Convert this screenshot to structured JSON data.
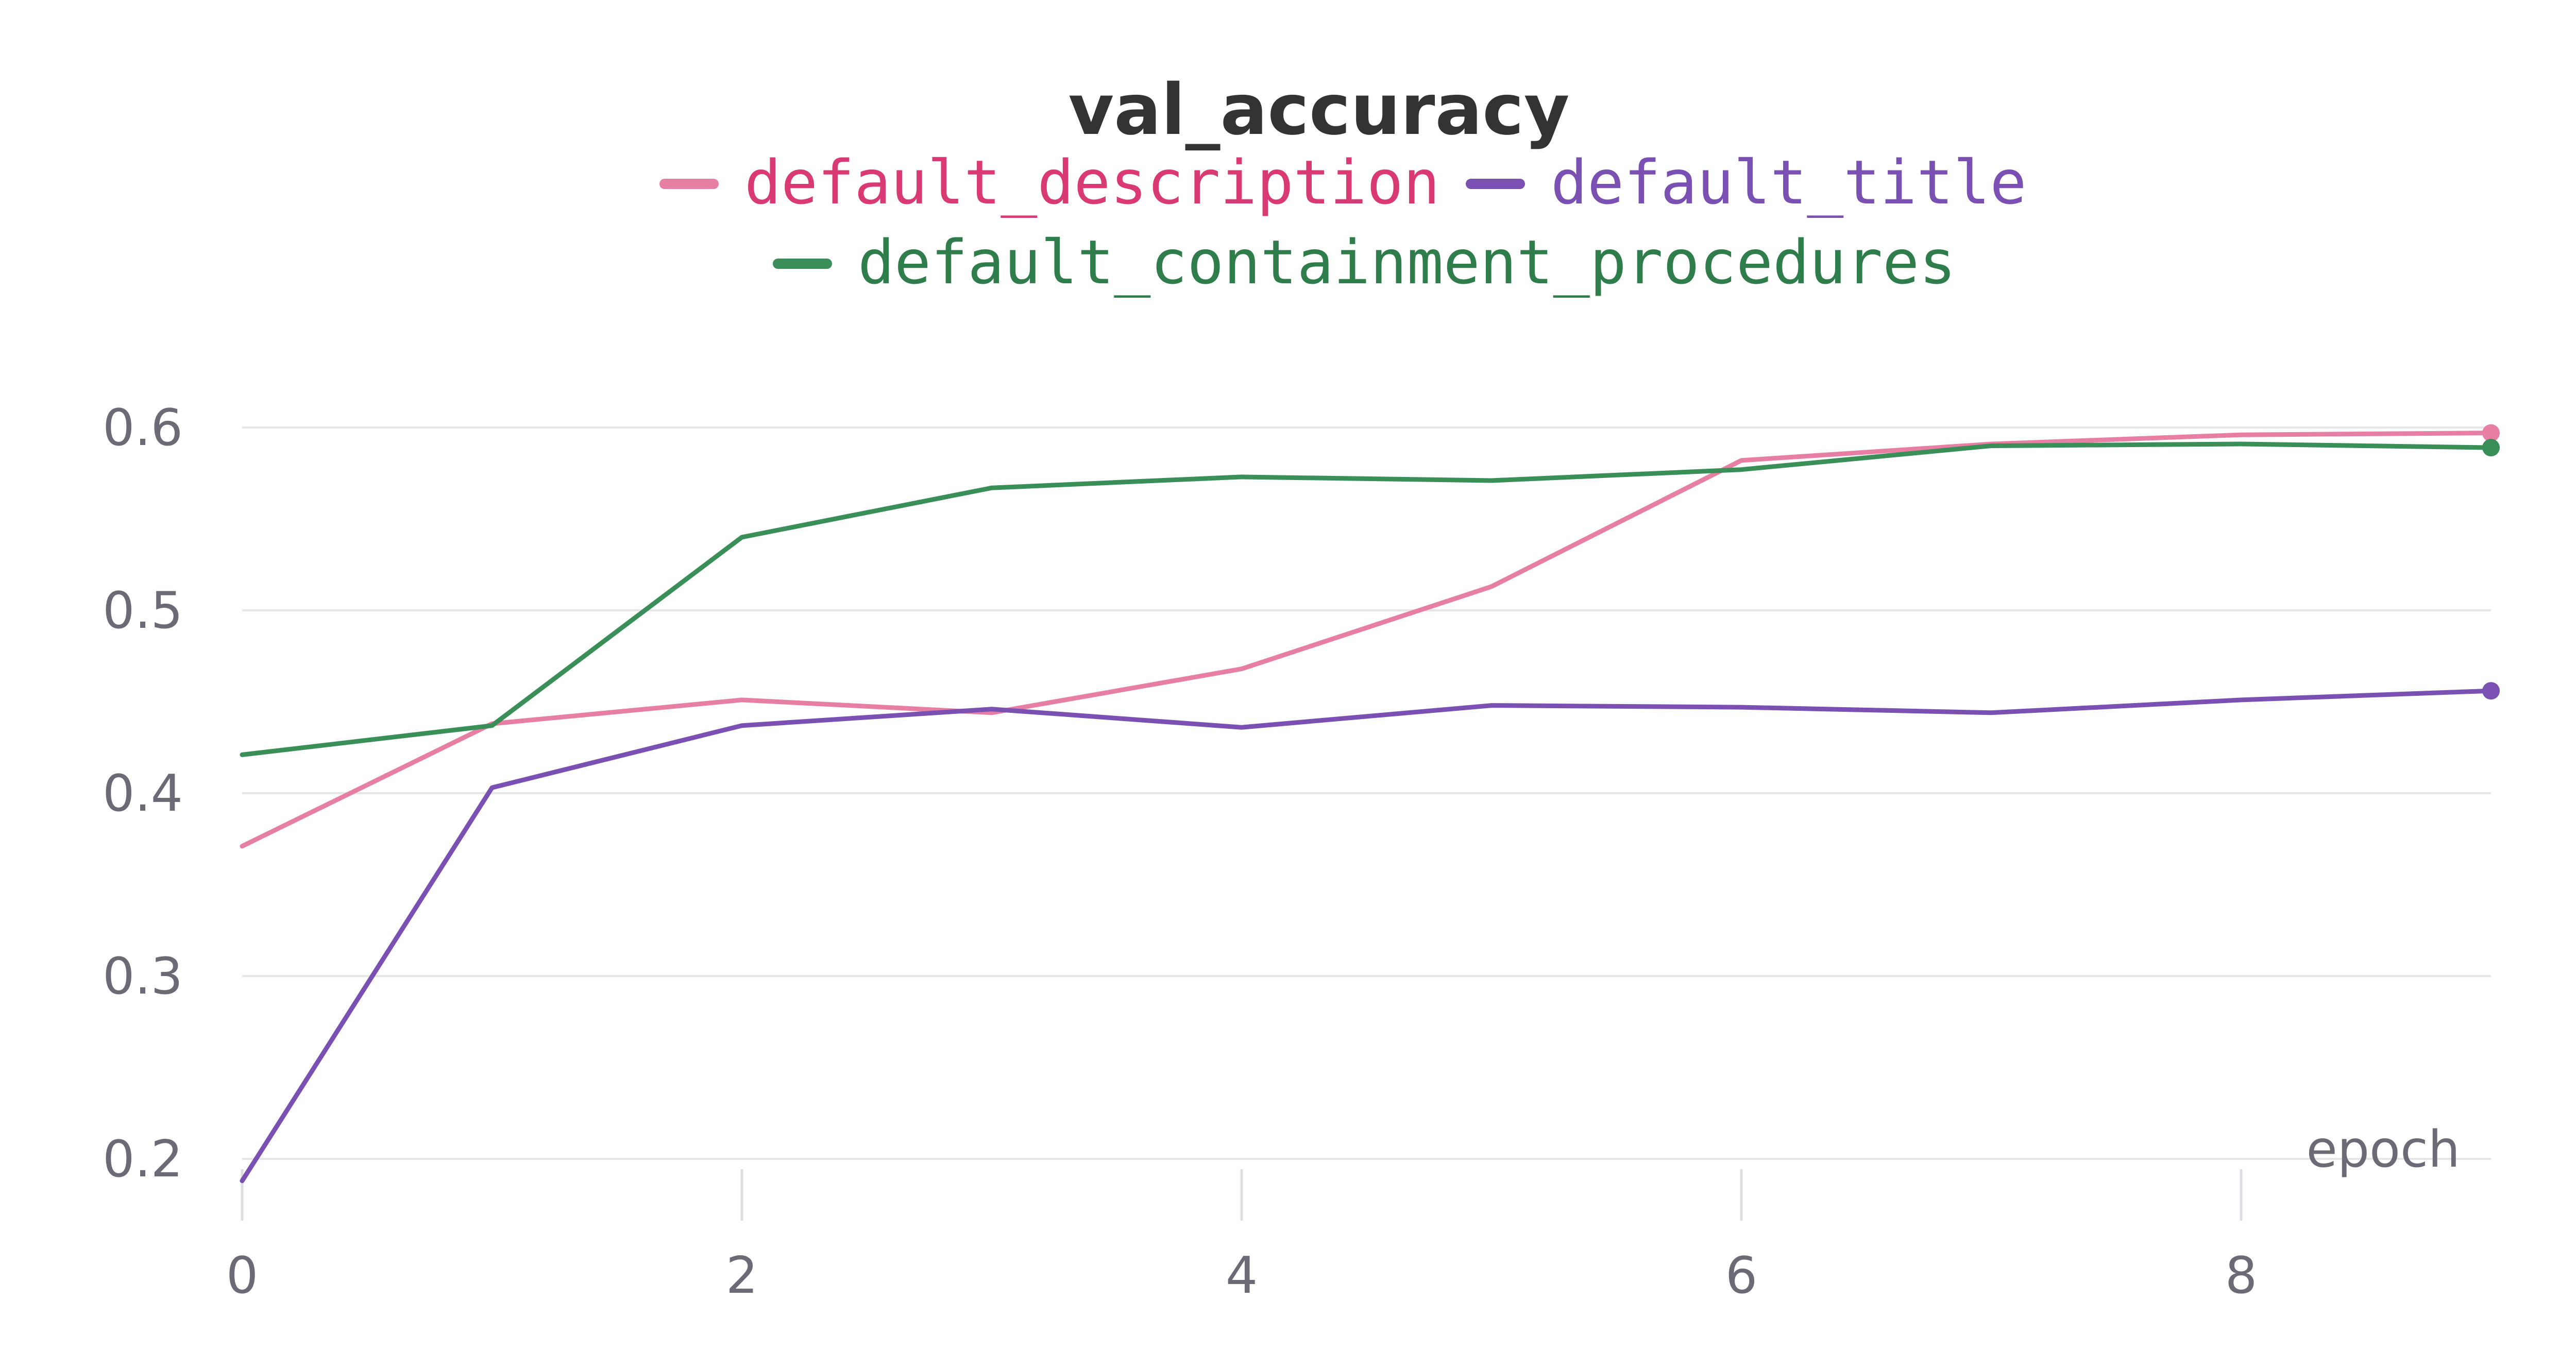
{
  "chart_data": {
    "type": "line",
    "title": "val_accuracy",
    "xlabel": "epoch",
    "ylabel": "",
    "xlim": [
      0,
      9
    ],
    "ylim": [
      0.19,
      0.62
    ],
    "x_ticks": [
      0,
      2,
      4,
      6,
      8
    ],
    "y_ticks": [
      0.2,
      0.3,
      0.4,
      0.5,
      0.6
    ],
    "grid": "horizontal",
    "legend_position": "top-center",
    "x": [
      0,
      1,
      2,
      3,
      4,
      5,
      6,
      7,
      8,
      9
    ],
    "series": [
      {
        "name": "default_description",
        "color": "#e77fa4",
        "legend_color": "#d93a73",
        "values": [
          0.371,
          0.438,
          0.451,
          0.444,
          0.468,
          0.513,
          0.582,
          0.591,
          0.596,
          0.597
        ]
      },
      {
        "name": "default_title",
        "color": "#7a50b3",
        "legend_color": "#7a50b3",
        "values": [
          0.188,
          0.403,
          0.437,
          0.446,
          0.436,
          0.448,
          0.447,
          0.444,
          0.451,
          0.456
        ]
      },
      {
        "name": "default_containment_procedures",
        "color": "#3a8f58",
        "legend_color": "#2f7d4b",
        "values": [
          0.421,
          0.437,
          0.54,
          0.567,
          0.573,
          0.571,
          0.577,
          0.59,
          0.591,
          0.589
        ]
      }
    ]
  }
}
